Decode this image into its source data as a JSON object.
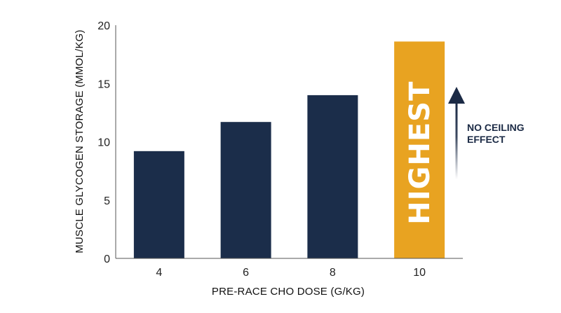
{
  "chart_data": {
    "type": "bar",
    "categories": [
      "4",
      "6",
      "8",
      "10"
    ],
    "values": [
      9.2,
      11.7,
      14.0,
      18.6
    ],
    "xlabel": "PRE-RACE CHO DOSE (G/KG)",
    "ylabel": "MUSCLE GLYCOGEN STORAGE (MMOL/KG)",
    "ylim": [
      0,
      20
    ],
    "yticks": [
      0,
      5,
      10,
      15,
      20
    ],
    "grid": false,
    "legend": "none",
    "highlight_index": 3,
    "highlight_label": "HIGHEST",
    "annotation": [
      "NO CEILING",
      "EFFECT"
    ],
    "colors": {
      "bar": "#1b2d4a",
      "highlight": "#e8a321",
      "axis": "#555555",
      "arrow": "#1b2a45"
    }
  }
}
